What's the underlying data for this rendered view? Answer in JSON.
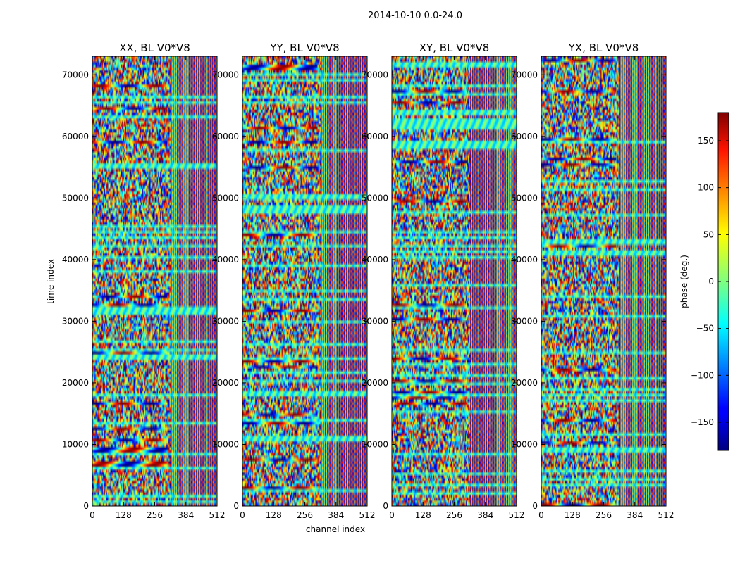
{
  "figure": {
    "suptitle": "2014-10-10 0.0-24.0"
  },
  "chart_data": {
    "type": "heatmap",
    "xlabel": "channel index",
    "ylabel": "time index",
    "xlim": [
      0,
      512
    ],
    "ylim": [
      0,
      73000
    ],
    "xticks": [
      0,
      128,
      256,
      384,
      512
    ],
    "yticks": [
      0,
      10000,
      20000,
      30000,
      40000,
      50000,
      60000,
      70000
    ],
    "panels": [
      {
        "name": "XX",
        "title": "XX, BL V0*V8"
      },
      {
        "name": "YY",
        "title": "YY, BL V0*V8"
      },
      {
        "name": "XY",
        "title": "XY, BL V0*V8"
      },
      {
        "name": "YX",
        "title": "YX, BL V0*V8"
      }
    ],
    "colorbar": {
      "label": "phase (deg.)",
      "range": [
        -180,
        180
      ],
      "ticks": [
        -150,
        -100,
        -50,
        0,
        50,
        100,
        150
      ],
      "colormap": "jet"
    }
  }
}
